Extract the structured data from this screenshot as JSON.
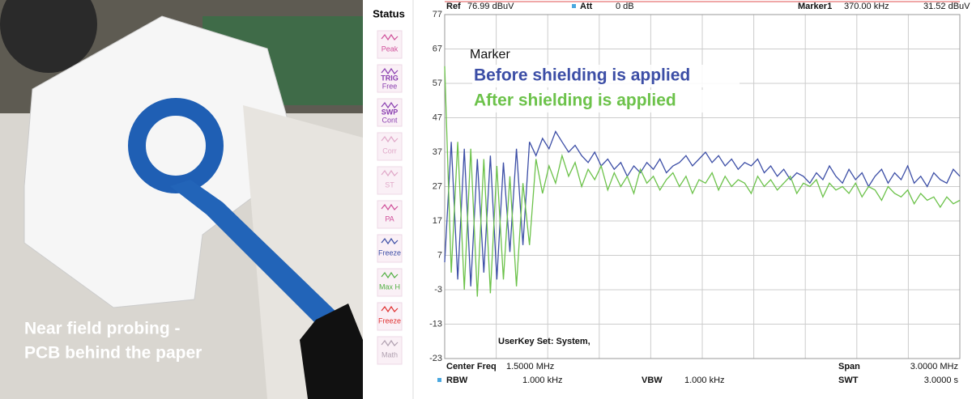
{
  "photo": {
    "caption": [
      "Near field probing -",
      "PCB behind the paper"
    ]
  },
  "status_panel": {
    "title": "Status",
    "items": [
      [
        "Peak"
      ],
      [
        "TRIG",
        "Free"
      ],
      [
        "SWP",
        "Cont"
      ],
      [
        "Corr"
      ],
      [
        "ST"
      ],
      [
        "PA"
      ],
      [
        "Freeze"
      ],
      [
        "Max H"
      ],
      [
        "Freeze"
      ],
      [
        "Math"
      ]
    ]
  },
  "chart_data": {
    "type": "line",
    "header": {
      "ref_label": "Ref",
      "ref_value": "76.99 dBuV",
      "att_label": "Att",
      "att_value": "0 dB",
      "marker_label": "Marker1",
      "marker_freq": "370.00 kHz",
      "marker_level": "31.52 dBuV"
    },
    "footer": {
      "center_label": "Center Freq",
      "center_value": "1.5000 MHz",
      "span_label": "Span",
      "span_value": "3.0000 MHz",
      "rbw_label": "RBW",
      "rbw_value": "1.000 kHz",
      "vbw_label": "VBW",
      "vbw_value": "1.000 kHz",
      "swt_label": "SWT",
      "swt_value": "3.0000 s",
      "userkey": "UserKey Set:   System,"
    },
    "legend_title": "Marker",
    "ylim": [
      -23,
      77
    ],
    "yticks": [
      -23,
      -13,
      -3,
      7,
      17,
      27,
      37,
      47,
      57,
      67,
      77
    ],
    "grid": true,
    "series": [
      {
        "name": "Before shielding is applied",
        "color": "#3c4ea6",
        "values": [
          5,
          40,
          0,
          38,
          -2,
          35,
          2,
          36,
          0,
          34,
          8,
          38,
          10,
          40,
          36,
          41,
          38,
          43,
          40,
          37,
          39,
          36,
          34,
          37,
          33,
          35,
          32,
          34,
          30,
          33,
          31,
          34,
          32,
          35,
          31,
          33,
          34,
          36,
          33,
          35,
          37,
          34,
          36,
          33,
          35,
          32,
          34,
          33,
          35,
          31,
          33,
          30,
          32,
          29,
          31,
          30,
          28,
          31,
          29,
          33,
          30,
          28,
          32,
          29,
          31,
          27,
          30,
          32,
          28,
          31,
          29,
          33,
          28,
          30,
          27,
          31,
          29,
          28,
          32,
          30
        ]
      },
      {
        "name": "After shielding is applied",
        "color": "#6cc24a",
        "values": [
          62,
          2,
          40,
          -3,
          38,
          -5,
          35,
          -4,
          33,
          0,
          30,
          -2,
          28,
          10,
          35,
          25,
          33,
          28,
          36,
          30,
          34,
          27,
          32,
          29,
          33,
          26,
          31,
          27,
          30,
          25,
          32,
          28,
          30,
          26,
          29,
          31,
          27,
          30,
          25,
          29,
          28,
          31,
          26,
          30,
          27,
          29,
          28,
          25,
          30,
          27,
          29,
          26,
          28,
          30,
          25,
          28,
          27,
          29,
          24,
          28,
          26,
          27,
          25,
          28,
          24,
          27,
          26,
          23,
          27,
          25,
          24,
          26,
          22,
          25,
          23,
          24,
          21,
          24,
          22,
          23
        ]
      }
    ]
  }
}
